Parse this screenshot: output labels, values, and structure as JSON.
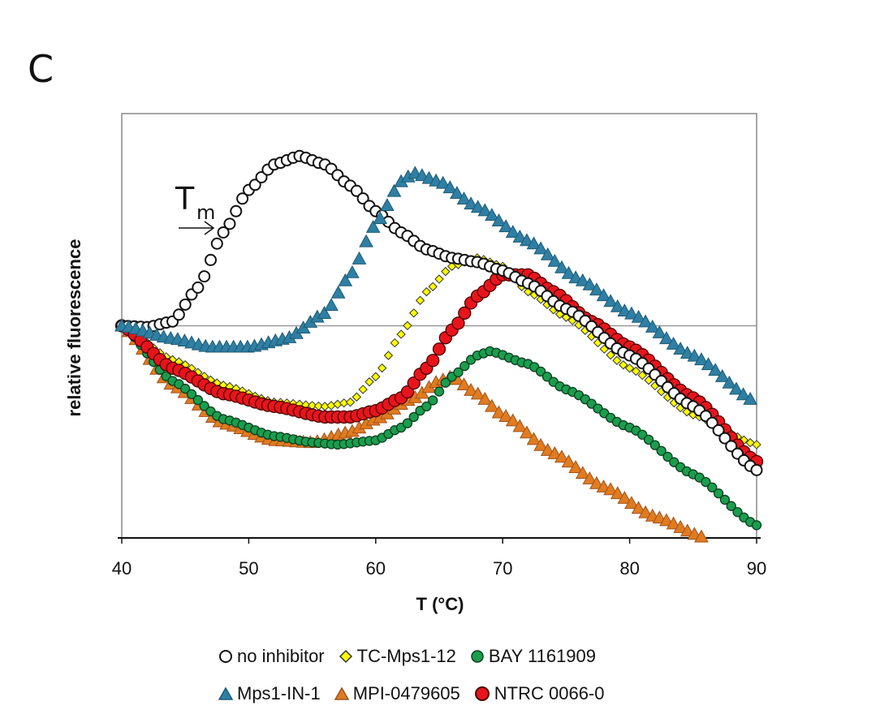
{
  "panel_label": "C",
  "chart_data": {
    "type": "scatter",
    "xlabel": "T (°C)",
    "ylabel": "relative fluorescence",
    "xlim": [
      40,
      90
    ],
    "ylim": [
      0,
      100
    ],
    "x_ticks": [
      40,
      50,
      60,
      70,
      80,
      90
    ],
    "grid": "single horizontal reference line",
    "annotation": {
      "base": "T",
      "sub": "m"
    },
    "legend_position": "bottom",
    "series": [
      {
        "name": "no inhibitor",
        "marker": "circle",
        "color": "#ffffff",
        "stroke": "#111111",
        "points": [
          [
            40,
            50
          ],
          [
            42,
            49.7
          ],
          [
            44,
            51
          ],
          [
            46,
            59
          ],
          [
            48,
            72
          ],
          [
            50,
            82
          ],
          [
            52,
            88
          ],
          [
            54,
            90
          ],
          [
            56,
            88
          ],
          [
            58,
            83
          ],
          [
            60,
            77
          ],
          [
            62,
            72
          ],
          [
            64,
            68
          ],
          [
            66,
            66
          ],
          [
            68,
            65
          ],
          [
            70,
            63
          ],
          [
            72,
            60
          ],
          [
            75,
            54
          ],
          [
            80,
            43
          ],
          [
            85,
            31
          ],
          [
            90,
            16
          ]
        ]
      },
      {
        "name": "TC-Mps1-12",
        "marker": "diamond",
        "color": "#ffff00",
        "stroke": "#333333",
        "points": [
          [
            40,
            50
          ],
          [
            44,
            42
          ],
          [
            48,
            36
          ],
          [
            52,
            32
          ],
          [
            56,
            31
          ],
          [
            58,
            32
          ],
          [
            60,
            38
          ],
          [
            62,
            48
          ],
          [
            64,
            58
          ],
          [
            66,
            64
          ],
          [
            68,
            66
          ],
          [
            70,
            64
          ],
          [
            72,
            58
          ],
          [
            75,
            52
          ],
          [
            80,
            40
          ],
          [
            85,
            29
          ],
          [
            90,
            22
          ]
        ]
      },
      {
        "name": "BAY 1161909",
        "marker": "circle",
        "color": "#1a9e4e",
        "stroke": "#0a3d1f",
        "points": [
          [
            40,
            50
          ],
          [
            44,
            37
          ],
          [
            48,
            28
          ],
          [
            52,
            24
          ],
          [
            55,
            22.5
          ],
          [
            57,
            22
          ],
          [
            60,
            23
          ],
          [
            62,
            26
          ],
          [
            64,
            31
          ],
          [
            66,
            38
          ],
          [
            68,
            43
          ],
          [
            69,
            44
          ],
          [
            72,
            41
          ],
          [
            75,
            35
          ],
          [
            80,
            26
          ],
          [
            85,
            15
          ],
          [
            90,
            3
          ]
        ]
      },
      {
        "name": "Mps1-IN-1",
        "marker": "triangle",
        "color": "#2e7fa3",
        "stroke": "#1e5a75",
        "points": [
          [
            40,
            50
          ],
          [
            44,
            47
          ],
          [
            47,
            45
          ],
          [
            50,
            45
          ],
          [
            53,
            47
          ],
          [
            56,
            53
          ],
          [
            58,
            62
          ],
          [
            60,
            74
          ],
          [
            62,
            84
          ],
          [
            63,
            86
          ],
          [
            65,
            84
          ],
          [
            68,
            78
          ],
          [
            72,
            70
          ],
          [
            76,
            61
          ],
          [
            80,
            53
          ],
          [
            85,
            43
          ],
          [
            90,
            32
          ]
        ]
      },
      {
        "name": "MPI-0479605",
        "marker": "triangle",
        "color": "#e07b20",
        "stroke": "#a0521a",
        "points": [
          [
            40,
            50
          ],
          [
            44,
            36
          ],
          [
            48,
            27
          ],
          [
            52,
            23
          ],
          [
            55,
            22.5
          ],
          [
            58,
            25
          ],
          [
            60,
            28
          ],
          [
            63,
            33
          ],
          [
            65,
            37
          ],
          [
            66,
            38
          ],
          [
            68,
            34
          ],
          [
            70,
            29
          ],
          [
            74,
            20
          ],
          [
            78,
            12
          ],
          [
            82,
            5
          ],
          [
            86,
            0
          ]
        ]
      },
      {
        "name": "NTRC 0066-0",
        "marker": "circle",
        "color": "#e8141b",
        "stroke": "#4a0000",
        "points": [
          [
            40,
            50
          ],
          [
            44,
            40
          ],
          [
            48,
            34
          ],
          [
            52,
            31
          ],
          [
            56,
            28.5
          ],
          [
            58,
            28.5
          ],
          [
            60,
            30
          ],
          [
            62,
            33
          ],
          [
            64,
            40
          ],
          [
            66,
            49
          ],
          [
            68,
            57
          ],
          [
            70,
            62
          ],
          [
            72,
            62
          ],
          [
            74,
            58
          ],
          [
            77,
            51
          ],
          [
            80,
            45
          ],
          [
            85,
            33
          ],
          [
            90,
            18
          ]
        ]
      }
    ]
  }
}
